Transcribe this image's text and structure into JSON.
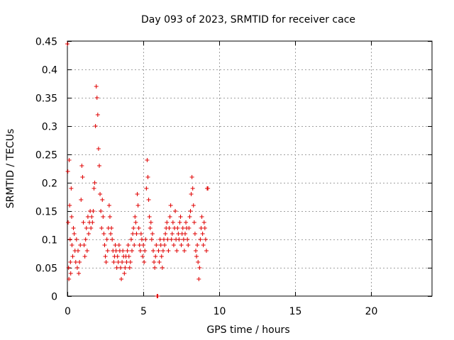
{
  "chart_data": {
    "type": "scatter",
    "title": "Day 093 of 2023, SRMTID for receiver cace",
    "xlabel": "GPS time / hours",
    "ylabel": "SRMTID / TECUs",
    "xlim": [
      0,
      24
    ],
    "ylim": [
      0,
      0.45
    ],
    "grid": true,
    "x_ticks": [
      0,
      5,
      10,
      15,
      20
    ],
    "x_tick_labels": [
      "0",
      "5",
      "10",
      "15",
      "20"
    ],
    "y_ticks": [
      0,
      0.05,
      0.1,
      0.15,
      0.2,
      0.25,
      0.3,
      0.35,
      0.4,
      0.45
    ],
    "y_tick_labels": [
      "0",
      "0.05",
      "0.1",
      "0.15",
      "0.2",
      "0.25",
      "0.3",
      "0.35",
      "0.4",
      "0.45"
    ],
    "marker": "+",
    "color": "#e00000",
    "series": [
      {
        "name": "SRMTID",
        "x": [
          0.0,
          0.03,
          0.05,
          0.08,
          0.1,
          0.12,
          0.15,
          0.18,
          0.2,
          0.22,
          0.25,
          0.28,
          0.3,
          0.35,
          0.4,
          0.45,
          0.5,
          0.55,
          0.6,
          0.65,
          0.7,
          0.75,
          0.8,
          0.85,
          0.9,
          0.95,
          1.0,
          1.05,
          1.1,
          1.15,
          1.2,
          1.25,
          1.3,
          1.35,
          1.4,
          1.45,
          1.5,
          1.55,
          1.6,
          1.65,
          1.7,
          1.75,
          1.8,
          1.85,
          1.9,
          1.95,
          2.0,
          2.05,
          2.1,
          2.15,
          2.2,
          2.25,
          2.3,
          2.35,
          2.4,
          2.45,
          2.5,
          2.55,
          2.6,
          2.65,
          2.7,
          2.75,
          2.8,
          2.85,
          2.9,
          2.95,
          3.0,
          3.05,
          3.1,
          3.15,
          3.2,
          3.25,
          3.3,
          3.35,
          3.4,
          3.45,
          3.5,
          3.55,
          3.6,
          3.65,
          3.7,
          3.75,
          3.8,
          3.85,
          3.9,
          3.95,
          4.0,
          4.05,
          4.1,
          4.15,
          4.2,
          4.25,
          4.3,
          4.35,
          4.4,
          4.45,
          4.5,
          4.55,
          4.6,
          4.65,
          4.7,
          4.75,
          4.8,
          4.85,
          4.9,
          4.95,
          5.0,
          5.05,
          5.1,
          5.15,
          5.2,
          5.25,
          5.3,
          5.35,
          5.4,
          5.45,
          5.5,
          5.55,
          5.6,
          5.65,
          5.7,
          5.75,
          5.8,
          5.85,
          5.9,
          5.95,
          6.0,
          6.05,
          6.1,
          6.15,
          6.2,
          6.25,
          6.3,
          6.35,
          6.4,
          6.45,
          6.5,
          6.55,
          6.6,
          6.65,
          6.7,
          6.75,
          6.8,
          6.85,
          6.9,
          6.95,
          7.0,
          7.05,
          7.1,
          7.15,
          7.2,
          7.25,
          7.3,
          7.35,
          7.4,
          7.45,
          7.5,
          7.55,
          7.6,
          7.65,
          7.7,
          7.75,
          7.8,
          7.85,
          7.9,
          7.95,
          8.0,
          8.05,
          8.1,
          8.15,
          8.2,
          8.25,
          8.3,
          8.35,
          8.4,
          8.45,
          8.5,
          8.55,
          8.6,
          8.65,
          8.7,
          8.75,
          8.8,
          8.85,
          8.9,
          8.95,
          9.0,
          9.05,
          9.1,
          9.15,
          9.2,
          9.25
        ],
        "y": [
          0.445,
          0.22,
          0.13,
          0.05,
          0.03,
          0.24,
          0.16,
          0.1,
          0.06,
          0.04,
          0.19,
          0.14,
          0.09,
          0.07,
          0.12,
          0.11,
          0.08,
          0.06,
          0.1,
          0.05,
          0.08,
          0.04,
          0.06,
          0.09,
          0.17,
          0.23,
          0.21,
          0.13,
          0.09,
          0.07,
          0.1,
          0.12,
          0.08,
          0.14,
          0.11,
          0.13,
          0.15,
          0.12,
          0.14,
          0.13,
          0.15,
          0.19,
          0.2,
          0.3,
          0.37,
          0.35,
          0.32,
          0.26,
          0.23,
          0.18,
          0.15,
          0.12,
          0.17,
          0.14,
          0.11,
          0.09,
          0.07,
          0.06,
          0.1,
          0.08,
          0.12,
          0.16,
          0.14,
          0.11,
          0.12,
          0.1,
          0.08,
          0.06,
          0.07,
          0.09,
          0.08,
          0.05,
          0.07,
          0.06,
          0.09,
          0.08,
          0.05,
          0.03,
          0.06,
          0.08,
          0.07,
          0.04,
          0.05,
          0.07,
          0.06,
          0.08,
          0.09,
          0.07,
          0.05,
          0.06,
          0.1,
          0.08,
          0.11,
          0.12,
          0.09,
          0.14,
          0.13,
          0.11,
          0.18,
          0.16,
          0.12,
          0.09,
          0.08,
          0.11,
          0.1,
          0.07,
          0.09,
          0.06,
          0.08,
          0.1,
          0.19,
          0.24,
          0.21,
          0.17,
          0.14,
          0.12,
          0.13,
          0.1,
          0.11,
          0.08,
          0.06,
          0.05,
          0.07,
          0.09,
          0.0,
          0.0,
          0.08,
          0.06,
          0.1,
          0.09,
          0.07,
          0.05,
          0.08,
          0.1,
          0.09,
          0.11,
          0.12,
          0.13,
          0.1,
          0.08,
          0.12,
          0.14,
          0.16,
          0.1,
          0.11,
          0.13,
          0.09,
          0.12,
          0.15,
          0.1,
          0.08,
          0.12,
          0.11,
          0.1,
          0.13,
          0.14,
          0.09,
          0.11,
          0.12,
          0.1,
          0.08,
          0.11,
          0.13,
          0.12,
          0.1,
          0.09,
          0.12,
          0.14,
          0.15,
          0.18,
          0.21,
          0.19,
          0.16,
          0.13,
          0.11,
          0.08,
          0.07,
          0.09,
          0.06,
          0.03,
          0.05,
          0.1,
          0.12,
          0.14,
          0.11,
          0.09,
          0.13,
          0.12,
          0.1,
          0.08,
          0.19,
          0.19
        ]
      }
    ]
  }
}
